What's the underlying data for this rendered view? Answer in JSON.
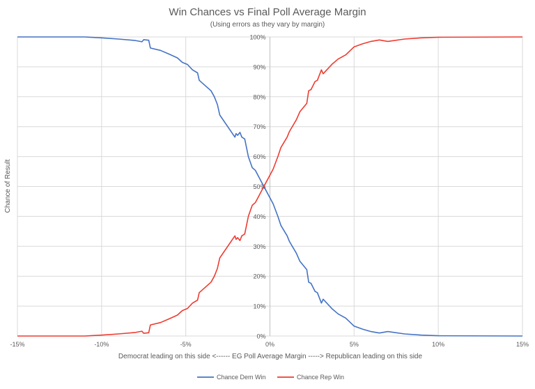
{
  "chart_data": {
    "type": "line",
    "title": "Win Chances vs Final Poll Average Margin",
    "subtitle": "(Using errors as they vary by margin)",
    "xlabel": "Democrat leading on this side <------ EG Poll Average Margin -----> Republican leading on this side",
    "ylabel": "Chance of Result",
    "xlim": [
      -15,
      15
    ],
    "ylim": [
      0,
      100
    ],
    "x_ticks": [
      -15,
      -10,
      -5,
      0,
      5,
      10,
      15
    ],
    "x_tick_labels": [
      "-15%",
      "-10%",
      "-5%",
      "0%",
      "5%",
      "10%",
      "15%"
    ],
    "y_ticks": [
      0,
      10,
      20,
      30,
      40,
      50,
      60,
      70,
      80,
      90,
      100
    ],
    "y_tick_labels": [
      "0%",
      "10%",
      "20%",
      "30%",
      "40%",
      "50%",
      "60%",
      "70%",
      "80%",
      "90%",
      "100%"
    ],
    "grid": true,
    "legend_position": "bottom",
    "x": [
      -15,
      -11,
      -10,
      -9,
      -8,
      -7.6,
      -7.5,
      -7.2,
      -7.1,
      -6.5,
      -6,
      -5.5,
      -5.2,
      -4.9,
      -4.6,
      -4.3,
      -4.2,
      -3.8,
      -3.5,
      -3.3,
      -3.12,
      -2.98,
      -2.08,
      -2.01,
      -1.92,
      -1.78,
      -1.67,
      -1.5,
      -1.28,
      -1.05,
      -0.87,
      -0.36,
      0.19,
      0.47,
      0.65,
      1.02,
      1.16,
      1.57,
      1.78,
      2.19,
      2.3,
      2.44,
      2.68,
      2.82,
      3.06,
      3.16,
      3.71,
      4.05,
      4.5,
      5,
      5.5,
      6,
      6.5,
      7,
      8,
      9,
      10,
      15
    ],
    "series": [
      {
        "name": "Chance Dem Win",
        "color": "#4472c4",
        "values": [
          100,
          100,
          99.7,
          99.3,
          98.8,
          98.4,
          99.1,
          98.9,
          96.3,
          95.5,
          94.3,
          93,
          91.5,
          90.8,
          89,
          88,
          85.5,
          83.5,
          82,
          80,
          77.4,
          73.9,
          66.5,
          67.7,
          67.1,
          68.1,
          66.5,
          65.9,
          59.9,
          56.3,
          55.4,
          50,
          44.2,
          40,
          37,
          33.5,
          31.6,
          27.7,
          25,
          22.2,
          18,
          17.6,
          14.9,
          14.5,
          11,
          12.3,
          9,
          7.4,
          6,
          3.3,
          2.3,
          1.5,
          1,
          1.5,
          0.7,
          0.3,
          0.1,
          0
        ]
      },
      {
        "name": "Chance Rep Win",
        "color": "#ee3b30",
        "values": [
          0,
          0,
          0.3,
          0.7,
          1.2,
          1.6,
          0.9,
          1.1,
          3.7,
          4.5,
          5.7,
          7,
          8.5,
          9.2,
          11,
          12,
          14.5,
          16.5,
          18,
          20,
          22.6,
          26.1,
          33.5,
          32.3,
          32.9,
          31.9,
          33.5,
          34.1,
          40.1,
          43.7,
          44.6,
          50,
          55.8,
          60,
          63,
          66.5,
          68.4,
          72.3,
          75,
          77.8,
          82,
          82.4,
          85.1,
          85.5,
          89,
          87.7,
          91,
          92.6,
          94,
          96.7,
          97.7,
          98.5,
          99,
          98.5,
          99.3,
          99.7,
          99.9,
          100
        ]
      }
    ]
  }
}
